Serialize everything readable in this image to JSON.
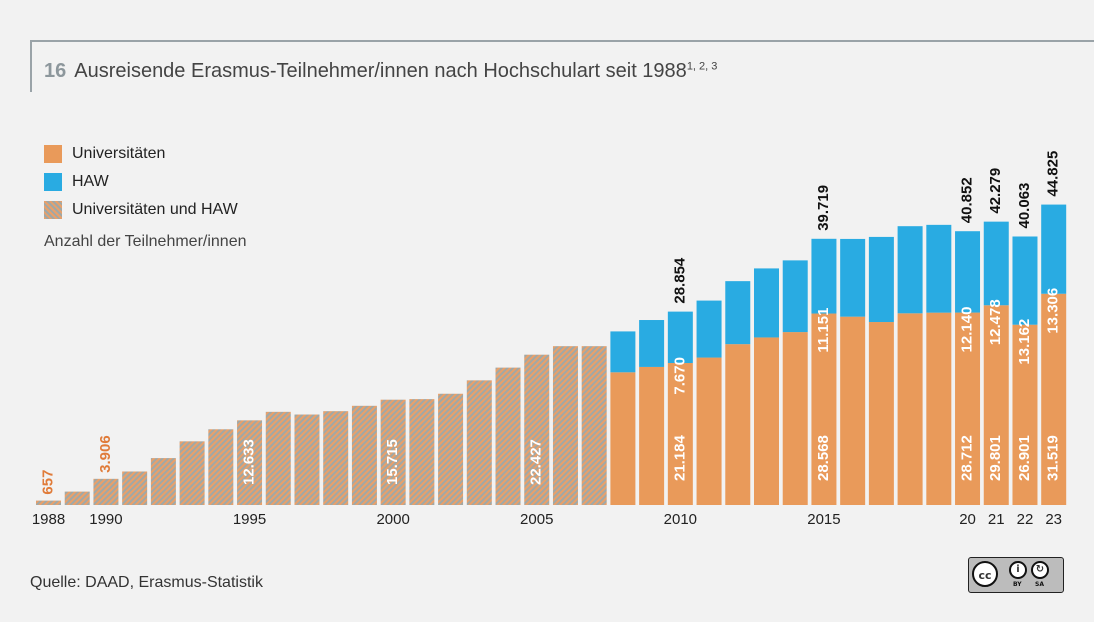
{
  "header": {
    "number": "16",
    "title": "Ausreisende Erasmus-Teilnehmer/innen nach Hochschulart seit 1988",
    "footnotes": "1, 2, 3"
  },
  "legend": [
    {
      "key": "uni",
      "label": "Universitäten",
      "color": "#e99a5a"
    },
    {
      "key": "haw",
      "label": "HAW",
      "color": "#29abe2"
    },
    {
      "key": "both",
      "label": "Universitäten und HAW",
      "color": "hatched"
    }
  ],
  "unit_label": "Anzahl der Teilnehmer/innen",
  "source": "Quelle: DAAD, Erasmus-Statistik",
  "license": {
    "cc": "cc",
    "by": "BY",
    "sa": "SA"
  },
  "chart_data": {
    "type": "bar",
    "stacked": true,
    "series_keys": [
      "uni",
      "haw",
      "both"
    ],
    "bars": [
      {
        "year": 1988,
        "tick": "1988",
        "both": 657,
        "label": "657",
        "label_color": "orange"
      },
      {
        "year": 1989,
        "tick": "",
        "both": 2000
      },
      {
        "year": 1990,
        "tick": "1990",
        "both": 3906,
        "label": "3.906",
        "label_color": "orange"
      },
      {
        "year": 1991,
        "tick": "",
        "both": 5000
      },
      {
        "year": 1992,
        "tick": "",
        "both": 7000
      },
      {
        "year": 1993,
        "tick": "",
        "both": 9500
      },
      {
        "year": 1994,
        "tick": "",
        "both": 11300
      },
      {
        "year": 1995,
        "tick": "1995",
        "both": 12633,
        "label": "12.633"
      },
      {
        "year": 1996,
        "tick": "",
        "both": 13900
      },
      {
        "year": 1997,
        "tick": "",
        "both": 13500
      },
      {
        "year": 1998,
        "tick": "",
        "both": 14000
      },
      {
        "year": 1999,
        "tick": "",
        "both": 14800
      },
      {
        "year": 2000,
        "tick": "2000",
        "both": 15715,
        "label": "15.715"
      },
      {
        "year": 2001,
        "tick": "",
        "both": 15800
      },
      {
        "year": 2002,
        "tick": "",
        "both": 16600
      },
      {
        "year": 2003,
        "tick": "",
        "both": 18600
      },
      {
        "year": 2004,
        "tick": "",
        "both": 20500
      },
      {
        "year": 2005,
        "tick": "2005",
        "both": 22427,
        "label": "22.427"
      },
      {
        "year": 2006,
        "tick": "",
        "both": 23700
      },
      {
        "year": 2007,
        "tick": "",
        "both": 23700
      },
      {
        "year": 2008,
        "tick": "",
        "uni": 19800,
        "haw": 6100
      },
      {
        "year": 2009,
        "tick": "",
        "uni": 20600,
        "haw": 7000
      },
      {
        "year": 2010,
        "tick": "2010",
        "uni": 21184,
        "haw": 7670,
        "total": 28854,
        "label_uni": "21.184",
        "label_haw": "7.670",
        "label_total": "28.854"
      },
      {
        "year": 2011,
        "tick": "",
        "uni": 22000,
        "haw": 8500
      },
      {
        "year": 2012,
        "tick": "",
        "uni": 24000,
        "haw": 9400
      },
      {
        "year": 2013,
        "tick": "",
        "uni": 25000,
        "haw": 10300
      },
      {
        "year": 2014,
        "tick": "",
        "uni": 25800,
        "haw": 10700
      },
      {
        "year": 2015,
        "tick": "2015",
        "uni": 28568,
        "haw": 11151,
        "total": 39719,
        "label_uni": "28.568",
        "label_haw": "11.151",
        "label_total": "39.719"
      },
      {
        "year": 2016,
        "tick": "",
        "uni": 28100,
        "haw": 11600
      },
      {
        "year": 2017,
        "tick": "",
        "uni": 27300,
        "haw": 12700
      },
      {
        "year": 2018,
        "tick": "",
        "uni": 28600,
        "haw": 13000
      },
      {
        "year": 2019,
        "tick": "",
        "uni": 28700,
        "haw": 13100
      },
      {
        "year": 2020,
        "tick": "20",
        "uni": 28712,
        "haw": 12140,
        "total": 40852,
        "label_uni": "28.712",
        "label_haw": "12.140",
        "label_total": "40.852"
      },
      {
        "year": 2021,
        "tick": "21",
        "uni": 29801,
        "haw": 12478,
        "total": 42279,
        "label_uni": "29.801",
        "label_haw": "12.478",
        "label_total": "42.279"
      },
      {
        "year": 2022,
        "tick": "22",
        "uni": 26901,
        "haw": 13162,
        "total": 40063,
        "label_uni": "26.901",
        "label_haw": "13.162",
        "label_total": "40.063"
      },
      {
        "year": 2023,
        "tick": "23",
        "uni": 31519,
        "haw": 13306,
        "total": 44825,
        "label_uni": "31.519",
        "label_haw": "13.306",
        "label_total": "44.825"
      }
    ],
    "ylim": [
      0,
      47000
    ],
    "colors": {
      "uni": "#e99a5a",
      "haw": "#29abe2",
      "hatch_a": "#e9a06a",
      "hatch_b": "#a0a8a6",
      "label_orange": "#e07b39",
      "label_dark": "#111111",
      "label_light": "#ffffff"
    }
  }
}
